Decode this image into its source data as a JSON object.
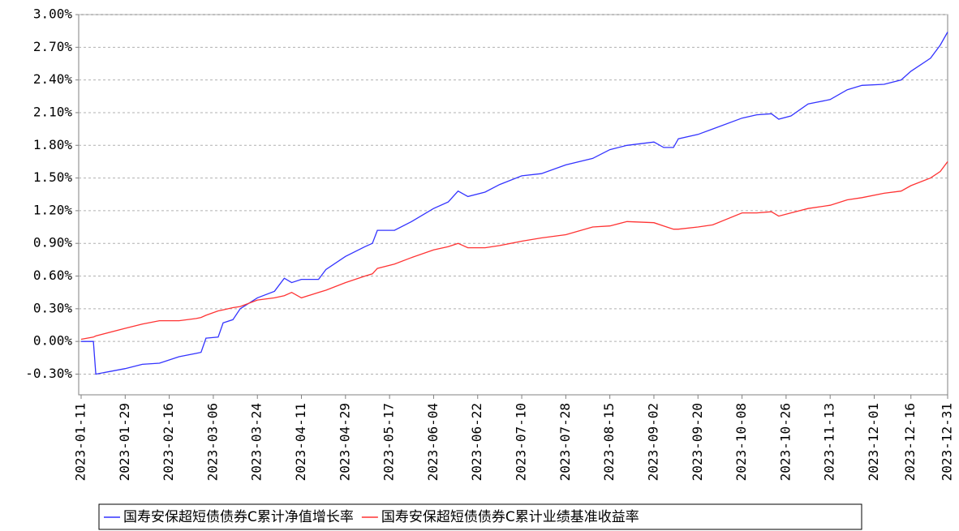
{
  "chart_data": {
    "type": "line",
    "x": [
      "2023-01-11",
      "2023-01-16",
      "2023-01-17",
      "2023-01-29",
      "2023-02-05",
      "2023-02-12",
      "2023-02-20",
      "2023-02-27",
      "2023-03-01",
      "2023-03-03",
      "2023-03-08",
      "2023-03-10",
      "2023-03-14",
      "2023-03-17",
      "2023-03-24",
      "2023-03-31",
      "2023-04-04",
      "2023-04-07",
      "2023-04-11",
      "2023-04-18",
      "2023-04-21",
      "2023-04-29",
      "2023-05-07",
      "2023-05-10",
      "2023-05-12",
      "2023-05-19",
      "2023-05-26",
      "2023-06-04",
      "2023-06-10",
      "2023-06-14",
      "2023-06-18",
      "2023-06-25",
      "2023-07-01",
      "2023-07-10",
      "2023-07-18",
      "2023-07-28",
      "2023-08-08",
      "2023-08-15",
      "2023-08-22",
      "2023-09-02",
      "2023-09-06",
      "2023-09-10",
      "2023-09-12",
      "2023-09-20",
      "2023-09-26",
      "2023-10-08",
      "2023-10-14",
      "2023-10-20",
      "2023-10-23",
      "2023-10-28",
      "2023-11-04",
      "2023-11-13",
      "2023-11-20",
      "2023-11-26",
      "2023-12-05",
      "2023-12-12",
      "2023-12-16",
      "2023-12-24",
      "2023-12-28",
      "2023-12-31"
    ],
    "series": [
      {
        "name": "国寿安保超短债债券C累计净值增长率",
        "color": "#3333ff",
        "values": [
          0,
          0,
          -0.3,
          -0.25,
          -0.21,
          -0.2,
          -0.14,
          -0.11,
          -0.1,
          0.03,
          0.04,
          0.17,
          0.2,
          0.3,
          0.4,
          0.46,
          0.58,
          0.54,
          0.57,
          0.57,
          0.66,
          0.78,
          0.87,
          0.9,
          1.02,
          1.02,
          1.1,
          1.22,
          1.28,
          1.38,
          1.33,
          1.37,
          1.44,
          1.52,
          1.54,
          1.62,
          1.68,
          1.76,
          1.8,
          1.83,
          1.78,
          1.78,
          1.86,
          1.9,
          1.95,
          2.05,
          2.08,
          2.09,
          2.04,
          2.07,
          2.18,
          2.22,
          2.31,
          2.35,
          2.36,
          2.4,
          2.48,
          2.6,
          2.72,
          2.84
        ]
      },
      {
        "name": "国寿安保超短债债券C累计业绩基准收益率",
        "color": "#ff3333",
        "values": [
          0.02,
          0.04,
          0.05,
          0.12,
          0.16,
          0.19,
          0.19,
          0.21,
          0.22,
          0.24,
          0.28,
          0.29,
          0.31,
          0.32,
          0.38,
          0.4,
          0.42,
          0.45,
          0.4,
          0.45,
          0.47,
          0.54,
          0.6,
          0.62,
          0.67,
          0.71,
          0.77,
          0.84,
          0.87,
          0.9,
          0.86,
          0.86,
          0.88,
          0.92,
          0.95,
          0.98,
          1.05,
          1.06,
          1.1,
          1.09,
          1.06,
          1.03,
          1.03,
          1.05,
          1.07,
          1.18,
          1.18,
          1.19,
          1.15,
          1.18,
          1.22,
          1.25,
          1.3,
          1.32,
          1.36,
          1.38,
          1.43,
          1.5,
          1.56,
          1.65
        ]
      }
    ],
    "xlim": [
      "2023-01-11",
      "2023-12-31"
    ],
    "xticks": [
      "2023-01-11",
      "2023-01-29",
      "2023-02-16",
      "2023-03-06",
      "2023-03-24",
      "2023-04-11",
      "2023-04-29",
      "2023-05-17",
      "2023-06-04",
      "2023-06-22",
      "2023-07-10",
      "2023-07-28",
      "2023-08-15",
      "2023-09-02",
      "2023-09-20",
      "2023-10-08",
      "2023-10-26",
      "2023-11-13",
      "2023-12-01",
      "2023-12-16",
      "2023-12-31"
    ],
    "ylim": [
      -0.49,
      3.0
    ],
    "yticks": [
      {
        "value": -0.3,
        "label": "-0.30%"
      },
      {
        "value": 0,
        "label": "0.00%"
      },
      {
        "value": 0.3,
        "label": "0.30%"
      },
      {
        "value": 0.6,
        "label": "0.60%"
      },
      {
        "value": 0.9,
        "label": "0.90%"
      },
      {
        "value": 1.2,
        "label": "1.20%"
      },
      {
        "value": 1.5,
        "label": "1.50%"
      },
      {
        "value": 1.8,
        "label": "1.80%"
      },
      {
        "value": 2.1,
        "label": "2.10%"
      },
      {
        "value": 2.4,
        "label": "2.40%"
      },
      {
        "value": 2.7,
        "label": "2.70%"
      },
      {
        "value": 3.0,
        "label": "3.00%"
      }
    ],
    "grid": true,
    "legend": "bottom"
  }
}
